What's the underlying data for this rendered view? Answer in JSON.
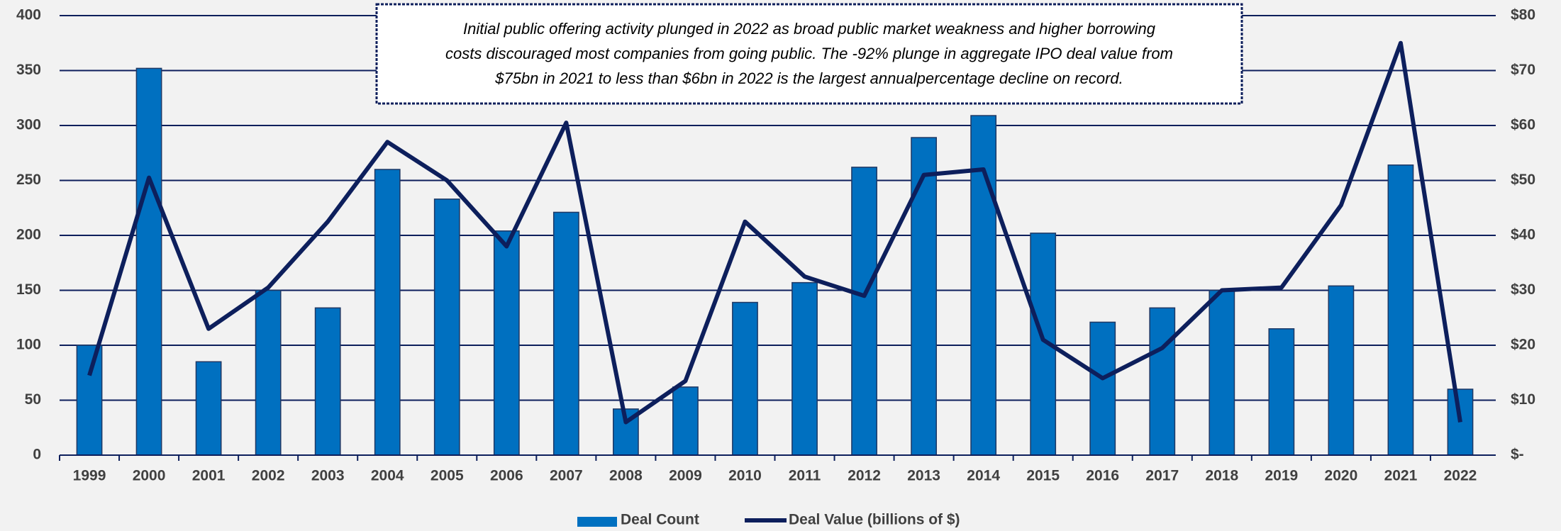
{
  "chart_data": {
    "type": "bar-line",
    "annotation": [
      "Initial public offering activity plunged in 2022 as broad public market weakness and higher borrowing",
      "costs discouraged most companies from going public. The -92% plunge in aggregate IPO deal value from",
      "$75bn in 2021 to less than $6bn in 2022 is the largest annualpercentage decline on record."
    ],
    "categories": [
      "1999",
      "2000",
      "2001",
      "2002",
      "2003",
      "2004",
      "2005",
      "2006",
      "2007",
      "2008",
      "2009",
      "2010",
      "2011",
      "2012",
      "2013",
      "2014",
      "2015",
      "2016",
      "2017",
      "2018",
      "2019",
      "2020",
      "2021",
      "2022"
    ],
    "series": [
      {
        "name": "Deal Count",
        "type": "bar",
        "color": "#0070c0",
        "values": [
          100,
          352,
          85,
          150,
          134,
          260,
          233,
          204,
          221,
          42,
          62,
          139,
          157,
          262,
          289,
          309,
          202,
          121,
          134,
          150,
          115,
          154,
          264,
          60
        ]
      },
      {
        "name": "Deal Value (billions of $)",
        "type": "line",
        "axis": "y2",
        "color": "#0d1f5c",
        "values": [
          14.5,
          50.5,
          23,
          30.5,
          42.5,
          57,
          50,
          38,
          60.5,
          6,
          13.5,
          42.5,
          32.5,
          29,
          51,
          52,
          21,
          14,
          19.5,
          30,
          30.5,
          45.5,
          75,
          6
        ]
      }
    ],
    "ylim": [
      0,
      400
    ],
    "yticks": [
      0,
      50,
      100,
      150,
      200,
      250,
      300,
      350,
      400
    ],
    "y2lim": [
      0,
      80
    ],
    "y2ticks": [
      {
        "value": 0,
        "label": "$-"
      },
      {
        "value": 10,
        "label": "$10"
      },
      {
        "value": 20,
        "label": "$20"
      },
      {
        "value": 30,
        "label": "$30"
      },
      {
        "value": 40,
        "label": "$40"
      },
      {
        "value": 50,
        "label": "$50"
      },
      {
        "value": 60,
        "label": "$60"
      },
      {
        "value": 70,
        "label": "$70"
      },
      {
        "value": 80,
        "label": "$80"
      }
    ],
    "grid": true,
    "legend": "bottom"
  }
}
